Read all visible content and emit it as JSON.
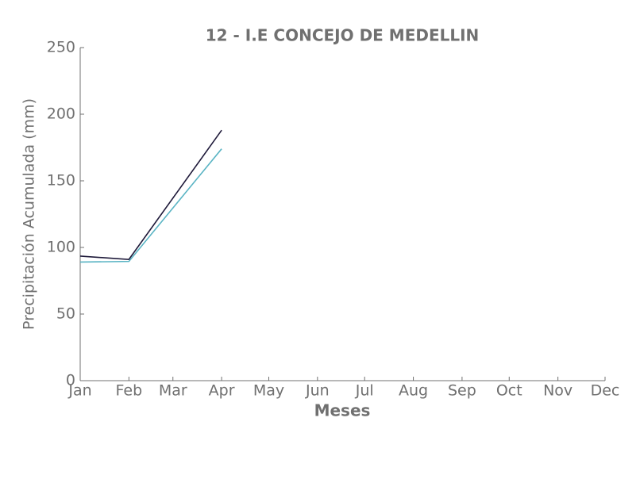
{
  "chart_data": {
    "type": "line",
    "title": "12 - I.E CONCEJO DE MEDELLIN",
    "xlabel": "Meses",
    "ylabel": "Precipitación Acumulada (mm)",
    "series": [
      {
        "color": "#1f1a3a",
        "x": [
          1,
          32,
          91
        ],
        "values": [
          93.5,
          91,
          188
        ]
      },
      {
        "color": "#5ab4c4",
        "x": [
          1,
          32,
          91
        ],
        "values": [
          89,
          89.5,
          174
        ]
      }
    ],
    "xlim": [
      1,
      335
    ],
    "xticks": [
      {
        "value": 1,
        "label": "Jan"
      },
      {
        "value": 32,
        "label": "Feb"
      },
      {
        "value": 60,
        "label": "Mar"
      },
      {
        "value": 91,
        "label": "Apr"
      },
      {
        "value": 121,
        "label": "May"
      },
      {
        "value": 152,
        "label": "Jun"
      },
      {
        "value": 182,
        "label": "Jul"
      },
      {
        "value": 213,
        "label": "Aug"
      },
      {
        "value": 244,
        "label": "Sep"
      },
      {
        "value": 274,
        "label": "Oct"
      },
      {
        "value": 305,
        "label": "Nov"
      },
      {
        "value": 335,
        "label": "Dec"
      }
    ],
    "ylim": [
      0,
      250
    ],
    "yticks": [
      0,
      50,
      100,
      150,
      200,
      250
    ],
    "grid": false
  }
}
